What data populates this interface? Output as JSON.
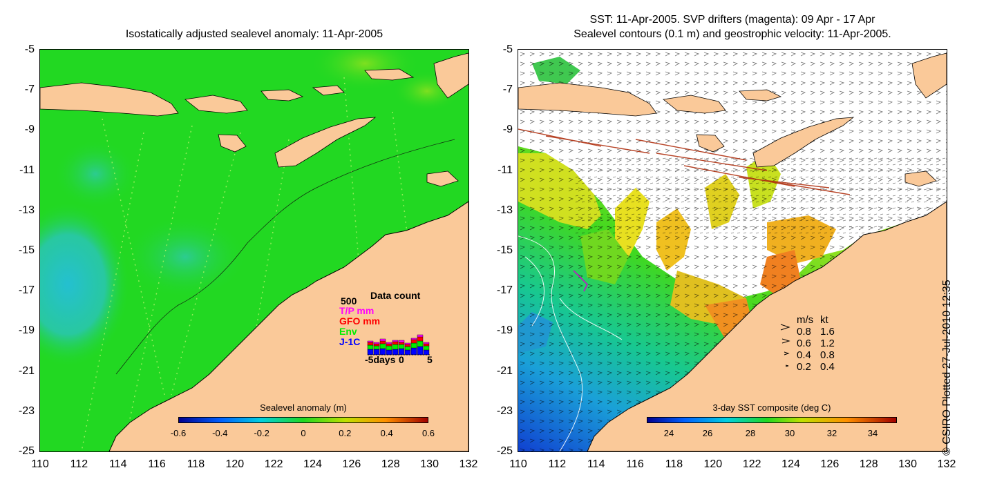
{
  "left_panel": {
    "title": "Isostatically adjusted sealevel anomaly: 11-Apr-2005",
    "colorbar_label": "Sealevel anomaly (m)",
    "colorbar_ticks": [
      "-0.6",
      "-0.4",
      "-0.2",
      "0",
      "0.2",
      "0.4",
      "0.6"
    ],
    "data_count": {
      "title": "Data count",
      "ymax_label": "500",
      "legend": [
        {
          "label": "T/P mm",
          "color": "#ff00ff"
        },
        {
          "label": "GFO mm",
          "color": "#ff0000"
        },
        {
          "label": "Env",
          "color": "#00ee00"
        },
        {
          "label": "J-1C",
          "color": "#0000ff"
        }
      ],
      "x_labels": [
        "-5days",
        "0",
        "5"
      ]
    }
  },
  "right_panel": {
    "title_line1": "SST: 11-Apr-2005. SVP drifters (magenta): 09 Apr - 17 Apr",
    "title_line2": "Sealevel contours (0.1 m) and geostrophic velocity: 11-Apr-2005.",
    "colorbar_label": "3-day SST composite (deg C)",
    "colorbar_ticks": [
      "24",
      "26",
      "28",
      "30",
      "32",
      "34"
    ],
    "velocity_key": {
      "header_ms": "m/s",
      "header_kt": "kt",
      "rows": [
        {
          "ms": "0.8",
          "kt": "1.6"
        },
        {
          "ms": "0.6",
          "kt": "1.2"
        },
        {
          "ms": "0.4",
          "kt": "0.8"
        },
        {
          "ms": "0.2",
          "kt": "0.4"
        }
      ]
    }
  },
  "axes": {
    "y_ticks": [
      "-5",
      "-7",
      "-9",
      "-11",
      "-13",
      "-15",
      "-17",
      "-19",
      "-21",
      "-23",
      "-25"
    ],
    "x_ticks": [
      "110",
      "112",
      "114",
      "116",
      "118",
      "120",
      "122",
      "124",
      "126",
      "128",
      "130",
      "132"
    ]
  },
  "credit": "© CSIRO Plotted 27-Jul-2010 12:35",
  "colors": {
    "land": "#fac999",
    "sea_green": "#22d822",
    "sst_cold": "#1060e0"
  }
}
